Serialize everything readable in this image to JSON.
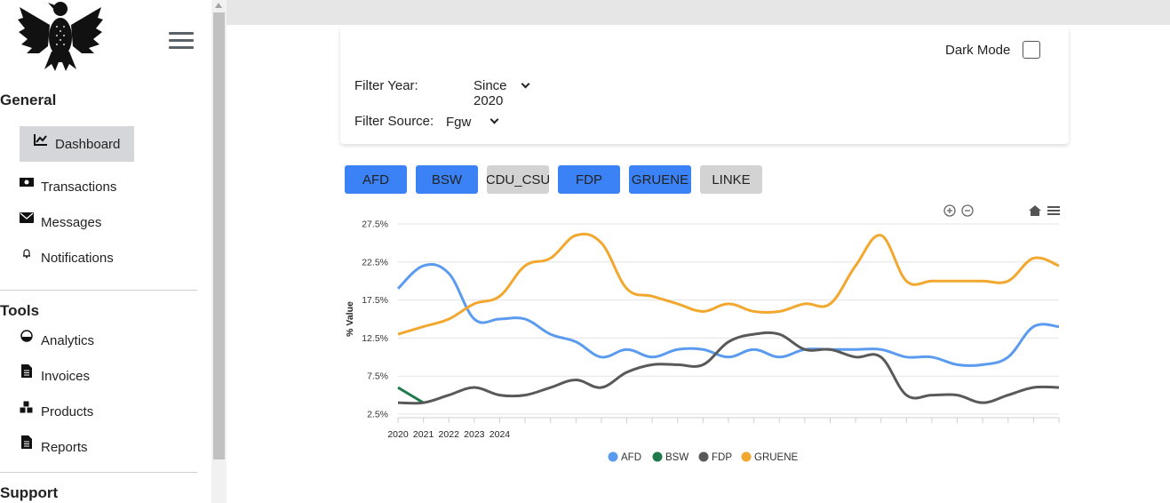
{
  "sidebar": {
    "sections": [
      {
        "title": "General",
        "items": [
          {
            "label": "Dashboard",
            "icon": "chart-line-icon"
          },
          {
            "label": "Transactions",
            "icon": "money-icon"
          },
          {
            "label": "Messages",
            "icon": "envelope-icon"
          },
          {
            "label": "Notifications",
            "icon": "bell-icon"
          }
        ]
      },
      {
        "title": "Tools",
        "items": [
          {
            "label": "Analytics",
            "icon": "gauge-icon"
          },
          {
            "label": "Invoices",
            "icon": "file-icon"
          },
          {
            "label": "Products",
            "icon": "cubes-icon"
          },
          {
            "label": "Reports",
            "icon": "file-icon"
          }
        ]
      },
      {
        "title": "Support",
        "items": []
      }
    ]
  },
  "filters": {
    "dark_mode_label": "Dark Mode",
    "year_label": "Filter Year:",
    "year_value": "Since 2020",
    "source_label": "Filter Source:",
    "source_value": "Fgw"
  },
  "party_buttons": [
    {
      "label": "AFD",
      "active": true
    },
    {
      "label": "BSW",
      "active": true
    },
    {
      "label": "CDU_CSU",
      "active": false
    },
    {
      "label": "FDP",
      "active": true
    },
    {
      "label": "GRUENE",
      "active": true
    },
    {
      "label": "LINKE",
      "active": false
    }
  ],
  "colors": {
    "accent": "#3b82f6",
    "inactive_button": "#d3d3d3",
    "topbar": "#e6e6e6"
  },
  "chart_data": {
    "type": "line",
    "ylabel": "% Value",
    "ylim": [
      2.5,
      27.5
    ],
    "y_ticks": [
      "27.5%",
      "22.5%",
      "17.5%",
      "12.5%",
      "7.5%",
      "2.5%"
    ],
    "x_tick_labels": [
      "2020",
      "2021",
      "2022",
      "2023",
      "2024"
    ],
    "grid": true,
    "legend": "bottom",
    "series": [
      {
        "name": "AFD",
        "color": "#5b9bef",
        "values": [
          19,
          22,
          21,
          15,
          15,
          15,
          13,
          12,
          10,
          11,
          10,
          11,
          11,
          10,
          11,
          10,
          11,
          11,
          11,
          11,
          10,
          10,
          9,
          9,
          10,
          14,
          14
        ]
      },
      {
        "name": "BSW",
        "color": "#1e7a4a",
        "values": [
          6,
          4,
          null,
          null,
          null,
          null,
          null,
          null,
          null,
          null,
          null,
          null,
          null,
          null,
          null,
          null,
          null,
          null,
          null,
          null,
          null,
          null,
          null,
          null,
          null,
          null,
          null
        ]
      },
      {
        "name": "FDP",
        "color": "#595959",
        "values": [
          4,
          4,
          5,
          6,
          5,
          5,
          6,
          7,
          6,
          8,
          9,
          9,
          9,
          12,
          13,
          13,
          11,
          11,
          10,
          10,
          5,
          5,
          5,
          4,
          5,
          6,
          6
        ]
      },
      {
        "name": "GRUENE",
        "color": "#f2a72e",
        "values": [
          13,
          14,
          15,
          17,
          18,
          22,
          23,
          26,
          25,
          19,
          18,
          17,
          16,
          17,
          16,
          16,
          17,
          17,
          22,
          26,
          20,
          20,
          20,
          20,
          20,
          23,
          22
        ]
      }
    ]
  }
}
